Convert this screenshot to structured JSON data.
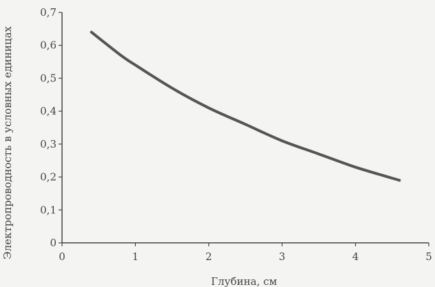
{
  "chart_data": {
    "type": "line",
    "xlabel": "Глубина, см",
    "ylabel": "Электропроводность в условных единицах",
    "xlim": [
      0,
      5
    ],
    "ylim": [
      0,
      0.7
    ],
    "x_ticks": [
      0,
      1,
      2,
      3,
      4,
      5
    ],
    "x_tick_labels": [
      "0",
      "1",
      "2",
      "3",
      "4",
      "5"
    ],
    "y_ticks": [
      0,
      0.1,
      0.2,
      0.3,
      0.4,
      0.5,
      0.6,
      0.7
    ],
    "y_tick_labels": [
      "0",
      "0,1",
      "0,2",
      "0,3",
      "0,4",
      "0,5",
      "0,6",
      "0,7"
    ],
    "grid": false,
    "series": [
      {
        "color": "#555555",
        "x": [
          0.4,
          0.8,
          1.0,
          1.5,
          2.0,
          2.5,
          3.0,
          3.5,
          4.0,
          4.6
        ],
        "y": [
          0.64,
          0.57,
          0.54,
          0.47,
          0.41,
          0.36,
          0.31,
          0.27,
          0.23,
          0.19
        ]
      }
    ]
  }
}
